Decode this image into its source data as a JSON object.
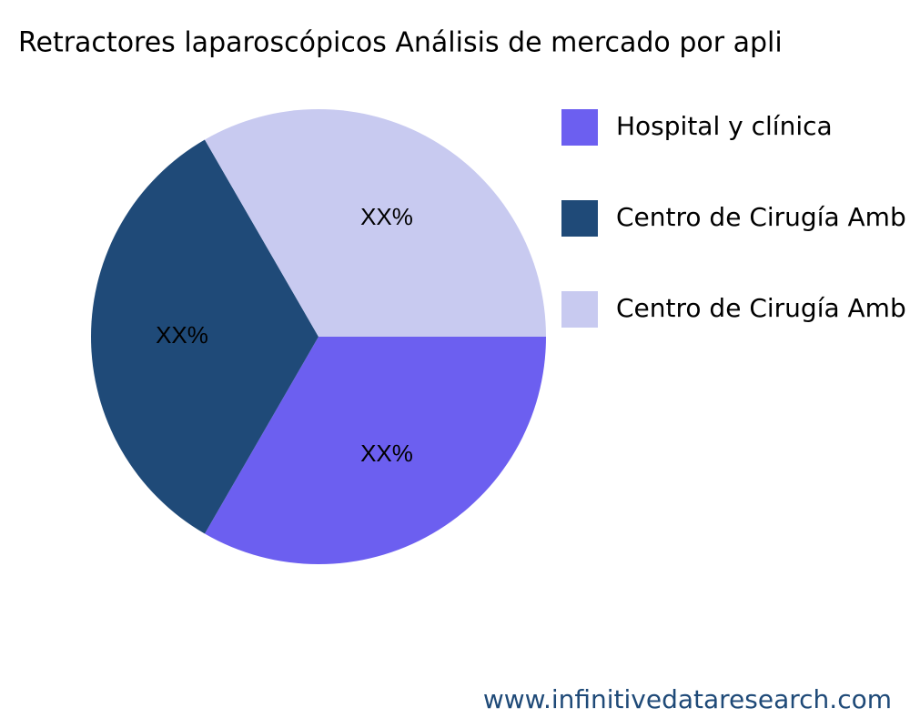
{
  "chart_data": {
    "type": "pie",
    "title": "Retractores laparoscópicos Análisis de mercado por apli",
    "categories": [
      "Hospital y clínica",
      "Centro de Cirugía Amb",
      "Centro de Cirugía Amb"
    ],
    "values": [
      33.3,
      33.3,
      33.3
    ],
    "value_labels": [
      "XX%",
      "XX%",
      "XX%"
    ],
    "colors": [
      "#6c5ff0",
      "#1f4a78",
      "#c8caf0"
    ],
    "source": "www.infinitivedataresearch.com"
  }
}
